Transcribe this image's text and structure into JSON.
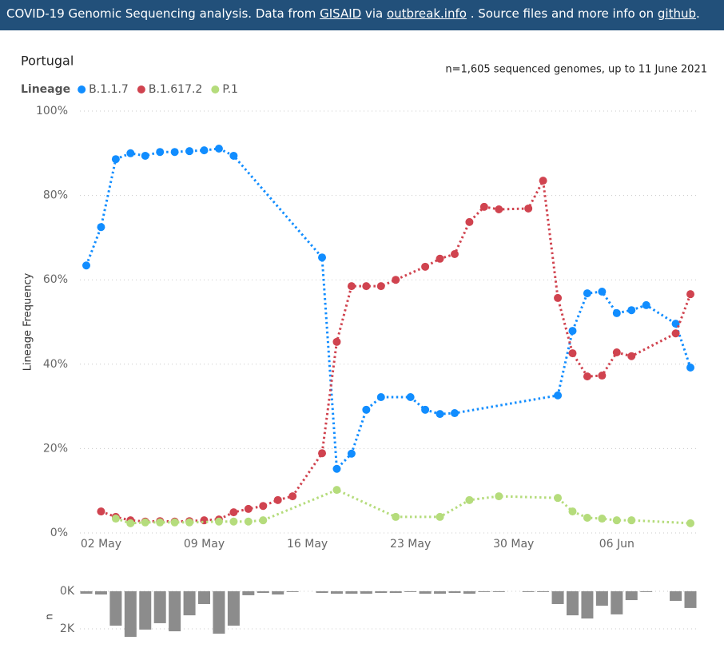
{
  "header": {
    "parts": [
      {
        "text": "COVID-19 Genomic Sequencing analysis. Data from "
      },
      {
        "text": "GISAID",
        "link": true
      },
      {
        "text": " via "
      },
      {
        "text": "outbreak.info",
        "link": true
      },
      {
        "text": " . Source files and more info on "
      },
      {
        "text": "github",
        "link": true
      },
      {
        "text": "."
      }
    ]
  },
  "chart_data": [
    {
      "type": "line",
      "title": "Portugal",
      "subtitle": "n=1,605 sequenced genomes, up to 11 June 2021",
      "legend_title": "Lineage",
      "ylabel": "Lineage Frequency",
      "xlim": [
        "05-01",
        "06-11"
      ],
      "xticks": [
        {
          "value": "05-02",
          "label": "02 May"
        },
        {
          "value": "05-09",
          "label": "09 May"
        },
        {
          "value": "05-16",
          "label": "16 May"
        },
        {
          "value": "05-23",
          "label": "23 May"
        },
        {
          "value": "05-30",
          "label": "30 May"
        },
        {
          "value": "06-06",
          "label": "06 Jun"
        }
      ],
      "ylim": [
        0,
        100
      ],
      "yticks": [
        {
          "value": 0,
          "label": "0%"
        },
        {
          "value": 20,
          "label": "20%"
        },
        {
          "value": 40,
          "label": "40%"
        },
        {
          "value": 60,
          "label": "60%"
        },
        {
          "value": 80,
          "label": "80%"
        },
        {
          "value": 100,
          "label": "100%"
        }
      ],
      "grid": true,
      "series": [
        {
          "name": "B.1.1.7",
          "color": "#118dff",
          "x": [
            "05-01",
            "05-02",
            "05-03",
            "05-04",
            "05-05",
            "05-06",
            "05-07",
            "05-08",
            "05-09",
            "05-10",
            "05-11",
            "05-17",
            "05-18",
            "05-19",
            "05-20",
            "05-21",
            "05-23",
            "05-24",
            "05-25",
            "05-26",
            "06-02",
            "06-03",
            "06-04",
            "06-05",
            "06-06",
            "06-07",
            "06-08",
            "06-10",
            "06-11"
          ],
          "values": [
            63.4,
            72.5,
            88.6,
            90,
            89.4,
            90.3,
            90.3,
            90.5,
            90.7,
            91.1,
            89.4,
            65.3,
            15.2,
            18.8,
            29.2,
            32.2,
            32.2,
            29.2,
            28.2,
            28.4,
            32.6,
            47.9,
            56.8,
            57.2,
            52.1,
            52.8,
            54,
            49.6,
            39.2
          ]
        },
        {
          "name": "B.1.617.2",
          "color": "#d0434f",
          "x": [
            "05-02",
            "05-03",
            "05-04",
            "05-05",
            "05-06",
            "05-07",
            "05-08",
            "05-09",
            "05-10",
            "05-11",
            "05-12",
            "05-13",
            "05-14",
            "05-15",
            "05-17",
            "05-18",
            "05-19",
            "05-20",
            "05-21",
            "05-22",
            "05-24",
            "05-25",
            "05-26",
            "05-27",
            "05-28",
            "05-29",
            "05-31",
            "06-01",
            "06-02",
            "06-03",
            "06-04",
            "06-05",
            "06-06",
            "06-07",
            "06-10",
            "06-11"
          ],
          "values": [
            5.1,
            3.8,
            3.0,
            2.7,
            2.8,
            2.7,
            2.8,
            3.0,
            3.2,
            4.9,
            5.7,
            6.4,
            7.8,
            8.7,
            18.9,
            45.3,
            58.5,
            58.5,
            58.5,
            60.0,
            63.1,
            65,
            66.1,
            73.7,
            77.3,
            76.7,
            76.9,
            83.5,
            55.7,
            42.6,
            37.1,
            37.3,
            42.8,
            41.9,
            47.3,
            56.6
          ]
        },
        {
          "name": "P.1",
          "color": "#b5dc7c",
          "x": [
            "05-03",
            "05-04",
            "05-05",
            "05-06",
            "05-07",
            "05-08",
            "05-10",
            "05-11",
            "05-12",
            "05-13",
            "05-18",
            "05-22",
            "05-25",
            "05-27",
            "05-29",
            "06-02",
            "06-03",
            "06-04",
            "06-05",
            "06-06",
            "06-07",
            "06-11"
          ],
          "values": [
            3.4,
            2.3,
            2.5,
            2.5,
            2.5,
            2.5,
            2.7,
            2.7,
            2.7,
            3.0,
            10.2,
            3.8,
            3.8,
            7.8,
            8.7,
            8.3,
            5.1,
            3.6,
            3.4,
            3.0,
            3.0,
            2.3
          ]
        }
      ]
    },
    {
      "type": "bar",
      "ylabel": "n",
      "color": "#8c8c8c",
      "xlim": [
        "05-01",
        "06-11"
      ],
      "x": [
        "05-01",
        "05-02",
        "05-03",
        "05-04",
        "05-05",
        "05-06",
        "05-07",
        "05-08",
        "05-09",
        "05-10",
        "05-11",
        "05-12",
        "05-13",
        "05-14",
        "05-15",
        "05-17",
        "05-18",
        "05-19",
        "05-20",
        "05-21",
        "05-22",
        "05-23",
        "05-24",
        "05-25",
        "05-26",
        "05-27",
        "05-28",
        "05-29",
        "05-31",
        "06-01",
        "06-02",
        "06-03",
        "06-04",
        "06-05",
        "06-06",
        "06-07",
        "06-08",
        "06-10",
        "06-11"
      ],
      "values": [
        130,
        170,
        1830,
        2430,
        2040,
        1700,
        2130,
        1280,
        680,
        2260,
        1830,
        210,
        85,
        170,
        40,
        85,
        130,
        130,
        130,
        85,
        85,
        40,
        130,
        130,
        85,
        130,
        40,
        40,
        40,
        40,
        680,
        1280,
        1450,
        770,
        1230,
        470,
        40,
        510,
        890
      ],
      "ylim": [
        0,
        2500
      ],
      "inverted": true,
      "yticks": [
        {
          "value": 0,
          "label": "0K"
        },
        {
          "value": 2000,
          "label": "2K"
        }
      ],
      "grid": true
    }
  ]
}
